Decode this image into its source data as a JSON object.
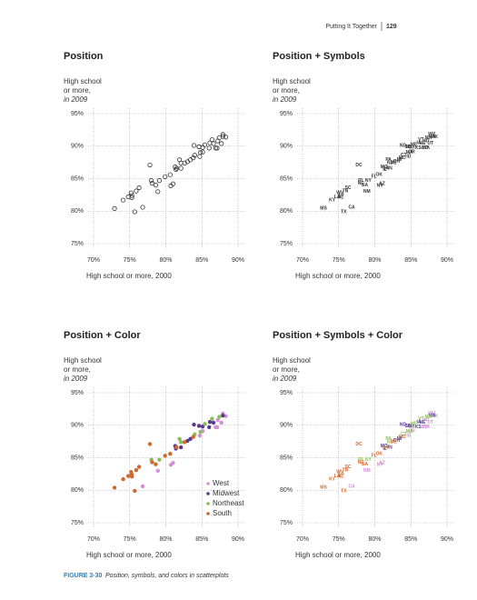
{
  "page": {
    "header": "Putting It Together",
    "page_number": "129",
    "caption_label": "FIGURE 3-30",
    "caption": "Position, symbols, and colors in scatterplots"
  },
  "chart_data": [
    {
      "type": "scatter",
      "marker": "circle-open",
      "title": "Position",
      "ylabel": [
        "High school",
        "or more,",
        "in 2009"
      ],
      "xlabel": "High school or more, 2000",
      "color": "#333333",
      "xlim": [
        70,
        90
      ],
      "ylim": [
        75,
        95
      ],
      "xticks": [
        {
          "value": 70,
          "label": "70%"
        },
        {
          "value": 75,
          "label": "75%"
        },
        {
          "value": 80,
          "label": "80%"
        },
        {
          "value": 85,
          "label": "85%"
        },
        {
          "value": 90,
          "label": "90%"
        }
      ],
      "yticks": [
        {
          "value": 75,
          "label": "75%"
        },
        {
          "value": 80,
          "label": "80%"
        },
        {
          "value": 85,
          "label": "85%"
        },
        {
          "value": 90,
          "label": "90%"
        },
        {
          "value": 95,
          "label": "95%"
        }
      ],
      "grid": true,
      "x": [
        76.8,
        78.9,
        80.7,
        81.0,
        85.1,
        86.9,
        87.1,
        84.7,
        87.7,
        87.2,
        87.9,
        88.3,
        84.6,
        82.1,
        81.3,
        83.0,
        81.4,
        83.4,
        85.1,
        86.0,
        84.6,
        83.9,
        86.1,
        86.6,
        87.9,
        78.0,
        79.1,
        82.1,
        81.9,
        87.4,
        86.4,
        85.4,
        84.8,
        84.0,
        72.9,
        75.7,
        74.1,
        74.8,
        75.3,
        75.2,
        75.3,
        75.9,
        76.3,
        78.6,
        78.1,
        79.9,
        77.8,
        80.6,
        82.6,
        81.5,
        83.8
      ],
      "y": [
        80.6,
        83.0,
        83.9,
        84.2,
        89.1,
        89.7,
        89.7,
        88.4,
        90.4,
        90.8,
        91.8,
        91.4,
        89.9,
        86.6,
        86.8,
        87.6,
        86.4,
        87.9,
        89.8,
        89.7,
        89.9,
        90.1,
        90.5,
        90.4,
        91.5,
        84.7,
        84.7,
        87.4,
        87.9,
        91.3,
        91.0,
        90.2,
        89.0,
        88.6,
        80.4,
        79.9,
        81.7,
        82.2,
        82.1,
        82.8,
        82.4,
        83.1,
        83.6,
        84.0,
        84.3,
        85.3,
        87.1,
        85.6,
        87.4,
        86.6,
        88.2
      ]
    },
    {
      "type": "scatter",
      "marker": "text",
      "title": "Position + Symbols",
      "ylabel": [
        "High school",
        "or more,",
        "in 2009"
      ],
      "xlabel": "High school or more, 2000",
      "color": "#333333",
      "xlim": [
        70,
        90
      ],
      "ylim": [
        75,
        95
      ],
      "xticks": [
        {
          "value": 70,
          "label": "70%"
        },
        {
          "value": 75,
          "label": "75%"
        },
        {
          "value": 80,
          "label": "80%"
        },
        {
          "value": 85,
          "label": "85%"
        },
        {
          "value": 90,
          "label": "90%"
        }
      ],
      "yticks": [
        {
          "value": 75,
          "label": "75%"
        },
        {
          "value": 80,
          "label": "80%"
        },
        {
          "value": 85,
          "label": "85%"
        },
        {
          "value": 90,
          "label": "90%"
        },
        {
          "value": 95,
          "label": "95%"
        }
      ],
      "grid": true,
      "labels": [
        "CA",
        "NM",
        "NV",
        "AZ",
        "OR",
        "CO",
        "WA",
        "ID",
        "UT",
        "MT",
        "WY",
        "AK",
        "HI",
        "IN",
        "MO",
        "OH",
        "IL",
        "MI",
        "WI",
        "KS",
        "SD",
        "ND",
        "IA",
        "NE",
        "MN",
        "RI",
        "NY",
        "NJ",
        "PA",
        "NH",
        "VT",
        "ME",
        "MA",
        "CT",
        "MS",
        "TX",
        "KY",
        "LA",
        "AL",
        "WV",
        "AR",
        "TN",
        "SC",
        "GA",
        "NC",
        "FL",
        "DC",
        "OK",
        "DE",
        "VA",
        "MD"
      ],
      "x": [
        76.8,
        78.9,
        80.7,
        81.0,
        85.1,
        86.9,
        87.1,
        84.7,
        87.7,
        87.2,
        87.9,
        88.3,
        84.6,
        82.1,
        81.3,
        83.0,
        81.4,
        83.4,
        85.1,
        86.0,
        84.6,
        83.9,
        86.1,
        86.6,
        87.9,
        78.0,
        79.1,
        82.1,
        81.9,
        87.4,
        86.4,
        85.4,
        84.8,
        84.0,
        72.9,
        75.7,
        74.1,
        74.8,
        75.3,
        75.2,
        75.3,
        75.9,
        76.3,
        78.6,
        78.1,
        79.9,
        77.8,
        80.6,
        82.6,
        81.5,
        83.8
      ],
      "y": [
        80.6,
        83.0,
        83.9,
        84.2,
        89.1,
        89.7,
        89.7,
        88.4,
        90.4,
        90.8,
        91.8,
        91.4,
        89.9,
        86.6,
        86.8,
        87.6,
        86.4,
        87.9,
        89.8,
        89.7,
        89.9,
        90.1,
        90.5,
        90.4,
        91.5,
        84.7,
        84.7,
        87.4,
        87.9,
        91.3,
        91.0,
        90.2,
        89.0,
        88.6,
        80.4,
        79.9,
        81.7,
        82.2,
        82.1,
        82.8,
        82.4,
        83.1,
        83.6,
        84.0,
        84.3,
        85.3,
        87.1,
        85.6,
        87.4,
        86.6,
        88.2
      ]
    },
    {
      "type": "scatter",
      "marker": "circle",
      "title": "Position + Color",
      "ylabel": [
        "High school",
        "or more,",
        "in 2009"
      ],
      "xlabel": "High school or more, 2000",
      "xlim": [
        70,
        90
      ],
      "ylim": [
        75,
        95
      ],
      "xticks": [
        {
          "value": 70,
          "label": "70%"
        },
        {
          "value": 75,
          "label": "75%"
        },
        {
          "value": 80,
          "label": "80%"
        },
        {
          "value": 85,
          "label": "85%"
        },
        {
          "value": 90,
          "label": "90%"
        }
      ],
      "yticks": [
        {
          "value": 75,
          "label": "75%"
        },
        {
          "value": 80,
          "label": "80%"
        },
        {
          "value": 85,
          "label": "85%"
        },
        {
          "value": 90,
          "label": "90%"
        },
        {
          "value": 95,
          "label": "95%"
        }
      ],
      "grid": true,
      "legend": "lower right",
      "series": [
        {
          "name": "West",
          "color": "#d58fd3",
          "x": [
            76.8,
            78.9,
            80.7,
            81.0,
            85.1,
            86.9,
            87.1,
            84.7,
            87.7,
            87.2,
            87.9,
            88.3,
            84.6
          ],
          "y": [
            80.6,
            83.0,
            83.9,
            84.2,
            89.1,
            89.7,
            89.7,
            88.4,
            90.4,
            90.8,
            91.8,
            91.4,
            89.9
          ]
        },
        {
          "name": "Midwest",
          "color": "#5a3a8c",
          "x": [
            82.1,
            81.3,
            83.0,
            81.4,
            83.4,
            85.1,
            86.0,
            84.6,
            83.9,
            86.1,
            86.6,
            87.9
          ],
          "y": [
            86.6,
            86.8,
            87.6,
            86.4,
            87.9,
            89.8,
            89.7,
            89.9,
            90.1,
            90.5,
            90.4,
            91.5
          ]
        },
        {
          "name": "Northeast",
          "color": "#8cbc5a",
          "x": [
            78.0,
            79.1,
            82.1,
            81.9,
            87.4,
            86.4,
            85.4,
            84.8,
            84.0
          ],
          "y": [
            84.7,
            84.7,
            87.4,
            87.9,
            91.3,
            91.0,
            90.2,
            89.0,
            88.6
          ]
        },
        {
          "name": "South",
          "color": "#d0692e",
          "x": [
            72.9,
            75.7,
            74.1,
            74.8,
            75.3,
            75.2,
            75.3,
            75.9,
            76.3,
            78.6,
            78.1,
            79.9,
            77.8,
            80.6,
            82.6,
            81.5,
            83.8
          ],
          "y": [
            80.4,
            79.9,
            81.7,
            82.2,
            82.1,
            82.8,
            82.4,
            83.1,
            83.6,
            84.0,
            84.3,
            85.3,
            87.1,
            85.6,
            87.4,
            86.6,
            88.2
          ]
        }
      ]
    },
    {
      "type": "scatter",
      "marker": "text",
      "title": "Position + Symbols + Color",
      "ylabel": [
        "High school",
        "or more,",
        "in 2009"
      ],
      "xlabel": "High school or more, 2000",
      "xlim": [
        70,
        90
      ],
      "ylim": [
        75,
        95
      ],
      "xticks": [
        {
          "value": 70,
          "label": "70%"
        },
        {
          "value": 75,
          "label": "75%"
        },
        {
          "value": 80,
          "label": "80%"
        },
        {
          "value": 85,
          "label": "85%"
        },
        {
          "value": 90,
          "label": "90%"
        }
      ],
      "yticks": [
        {
          "value": 75,
          "label": "75%"
        },
        {
          "value": 80,
          "label": "80%"
        },
        {
          "value": 85,
          "label": "85%"
        },
        {
          "value": 90,
          "label": "90%"
        },
        {
          "value": 95,
          "label": "95%"
        }
      ],
      "grid": true,
      "series": [
        {
          "color": "#d58fd3",
          "labels": [
            "CA",
            "NM",
            "NV",
            "AZ",
            "OR",
            "CO",
            "WA",
            "ID",
            "UT",
            "MT",
            "WY",
            "AK",
            "HI"
          ],
          "x": [
            76.8,
            78.9,
            80.7,
            81.0,
            85.1,
            86.9,
            87.1,
            84.7,
            87.7,
            87.2,
            87.9,
            88.3,
            84.6
          ],
          "y": [
            80.6,
            83.0,
            83.9,
            84.2,
            89.1,
            89.7,
            89.7,
            88.4,
            90.4,
            90.8,
            91.8,
            91.4,
            89.9
          ]
        },
        {
          "color": "#5a3a8c",
          "labels": [
            "IN",
            "MO",
            "OH",
            "IL",
            "MI",
            "WI",
            "KS",
            "SD",
            "ND",
            "IA",
            "NE",
            "MN"
          ],
          "x": [
            82.1,
            81.3,
            83.0,
            81.4,
            83.4,
            85.1,
            86.0,
            84.6,
            83.9,
            86.1,
            86.6,
            87.9
          ],
          "y": [
            86.6,
            86.8,
            87.6,
            86.4,
            87.9,
            89.8,
            89.7,
            89.9,
            90.1,
            90.5,
            90.4,
            91.5
          ]
        },
        {
          "color": "#8cbc5a",
          "labels": [
            "RI",
            "NY",
            "NJ",
            "PA",
            "NH",
            "VT",
            "ME",
            "MA",
            "CT"
          ],
          "x": [
            78.0,
            79.1,
            82.1,
            81.9,
            87.4,
            86.4,
            85.4,
            84.8,
            84.0
          ],
          "y": [
            84.7,
            84.7,
            87.4,
            87.9,
            91.3,
            91.0,
            90.2,
            89.0,
            88.6
          ]
        },
        {
          "color": "#d0692e",
          "labels": [
            "MS",
            "TX",
            "KY",
            "LA",
            "AL",
            "WV",
            "AR",
            "TN",
            "SC",
            "GA",
            "NC",
            "FL",
            "DC",
            "OK",
            "DE",
            "VA",
            "MD"
          ],
          "x": [
            72.9,
            75.7,
            74.1,
            74.8,
            75.3,
            75.2,
            75.3,
            75.9,
            76.3,
            78.6,
            78.1,
            79.9,
            77.8,
            80.6,
            82.6,
            81.5,
            83.8
          ],
          "y": [
            80.4,
            79.9,
            81.7,
            82.2,
            82.1,
            82.8,
            82.4,
            83.1,
            83.6,
            84.0,
            84.3,
            85.3,
            87.1,
            85.6,
            87.4,
            86.6,
            88.2
          ]
        }
      ]
    }
  ]
}
